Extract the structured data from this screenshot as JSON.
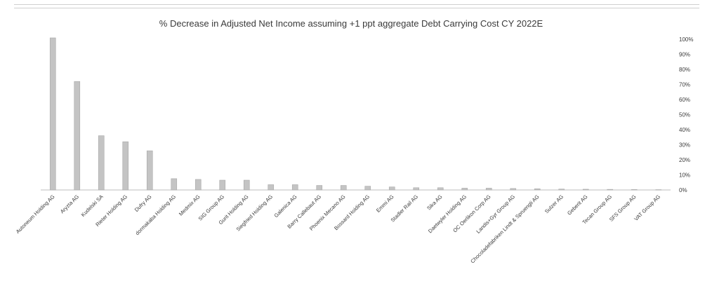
{
  "chart_data": {
    "type": "bar",
    "title": "% Decrease in Adjusted Net Income assuming +1 ppt aggregate Debt Carrying Cost CY 2022E",
    "xlabel": "",
    "ylabel": "",
    "ylim": [
      0,
      100
    ],
    "y_axis_side": "right",
    "y_ticks": [
      "0%",
      "10%",
      "20%",
      "30%",
      "40%",
      "50%",
      "60%",
      "70%",
      "80%",
      "90%",
      "100%"
    ],
    "grid": false,
    "legend": "none",
    "categories": [
      "Autoneum Holding AG",
      "Aryzta AG",
      "Kudelski SA",
      "Rieter Holding AG",
      "Dufry AG",
      "dormakaba Holding AG",
      "Medmix AG",
      "SIG Group AG",
      "Gurit Holding AG",
      "Siegfried Holding AG",
      "Galenica AG",
      "Barry Callebaut AG",
      "Phoenix Mecano AG",
      "Bossard Holding AG",
      "Emmi AG",
      "Stadler Rail AG",
      "Sika AG",
      "Daetwyler Holding AG",
      "OC Oerlikon Corp AG",
      "Landis+Gyr Group AG",
      "Chocoladefabriken Lindt & Spruengli AG",
      "Sulzer AG",
      "Geberit AG",
      "Tecan Group AG",
      "SFS Group AG",
      "VAT Group AG"
    ],
    "values": [
      101,
      72,
      36,
      32,
      26,
      7.5,
      7,
      6.5,
      6.5,
      3.5,
      3.5,
      3,
      3,
      2.5,
      2,
      1.5,
      1.5,
      1.2,
      1.2,
      1,
      0.8,
      0.6,
      0.5,
      0.4,
      0.3,
      0.2
    ]
  }
}
